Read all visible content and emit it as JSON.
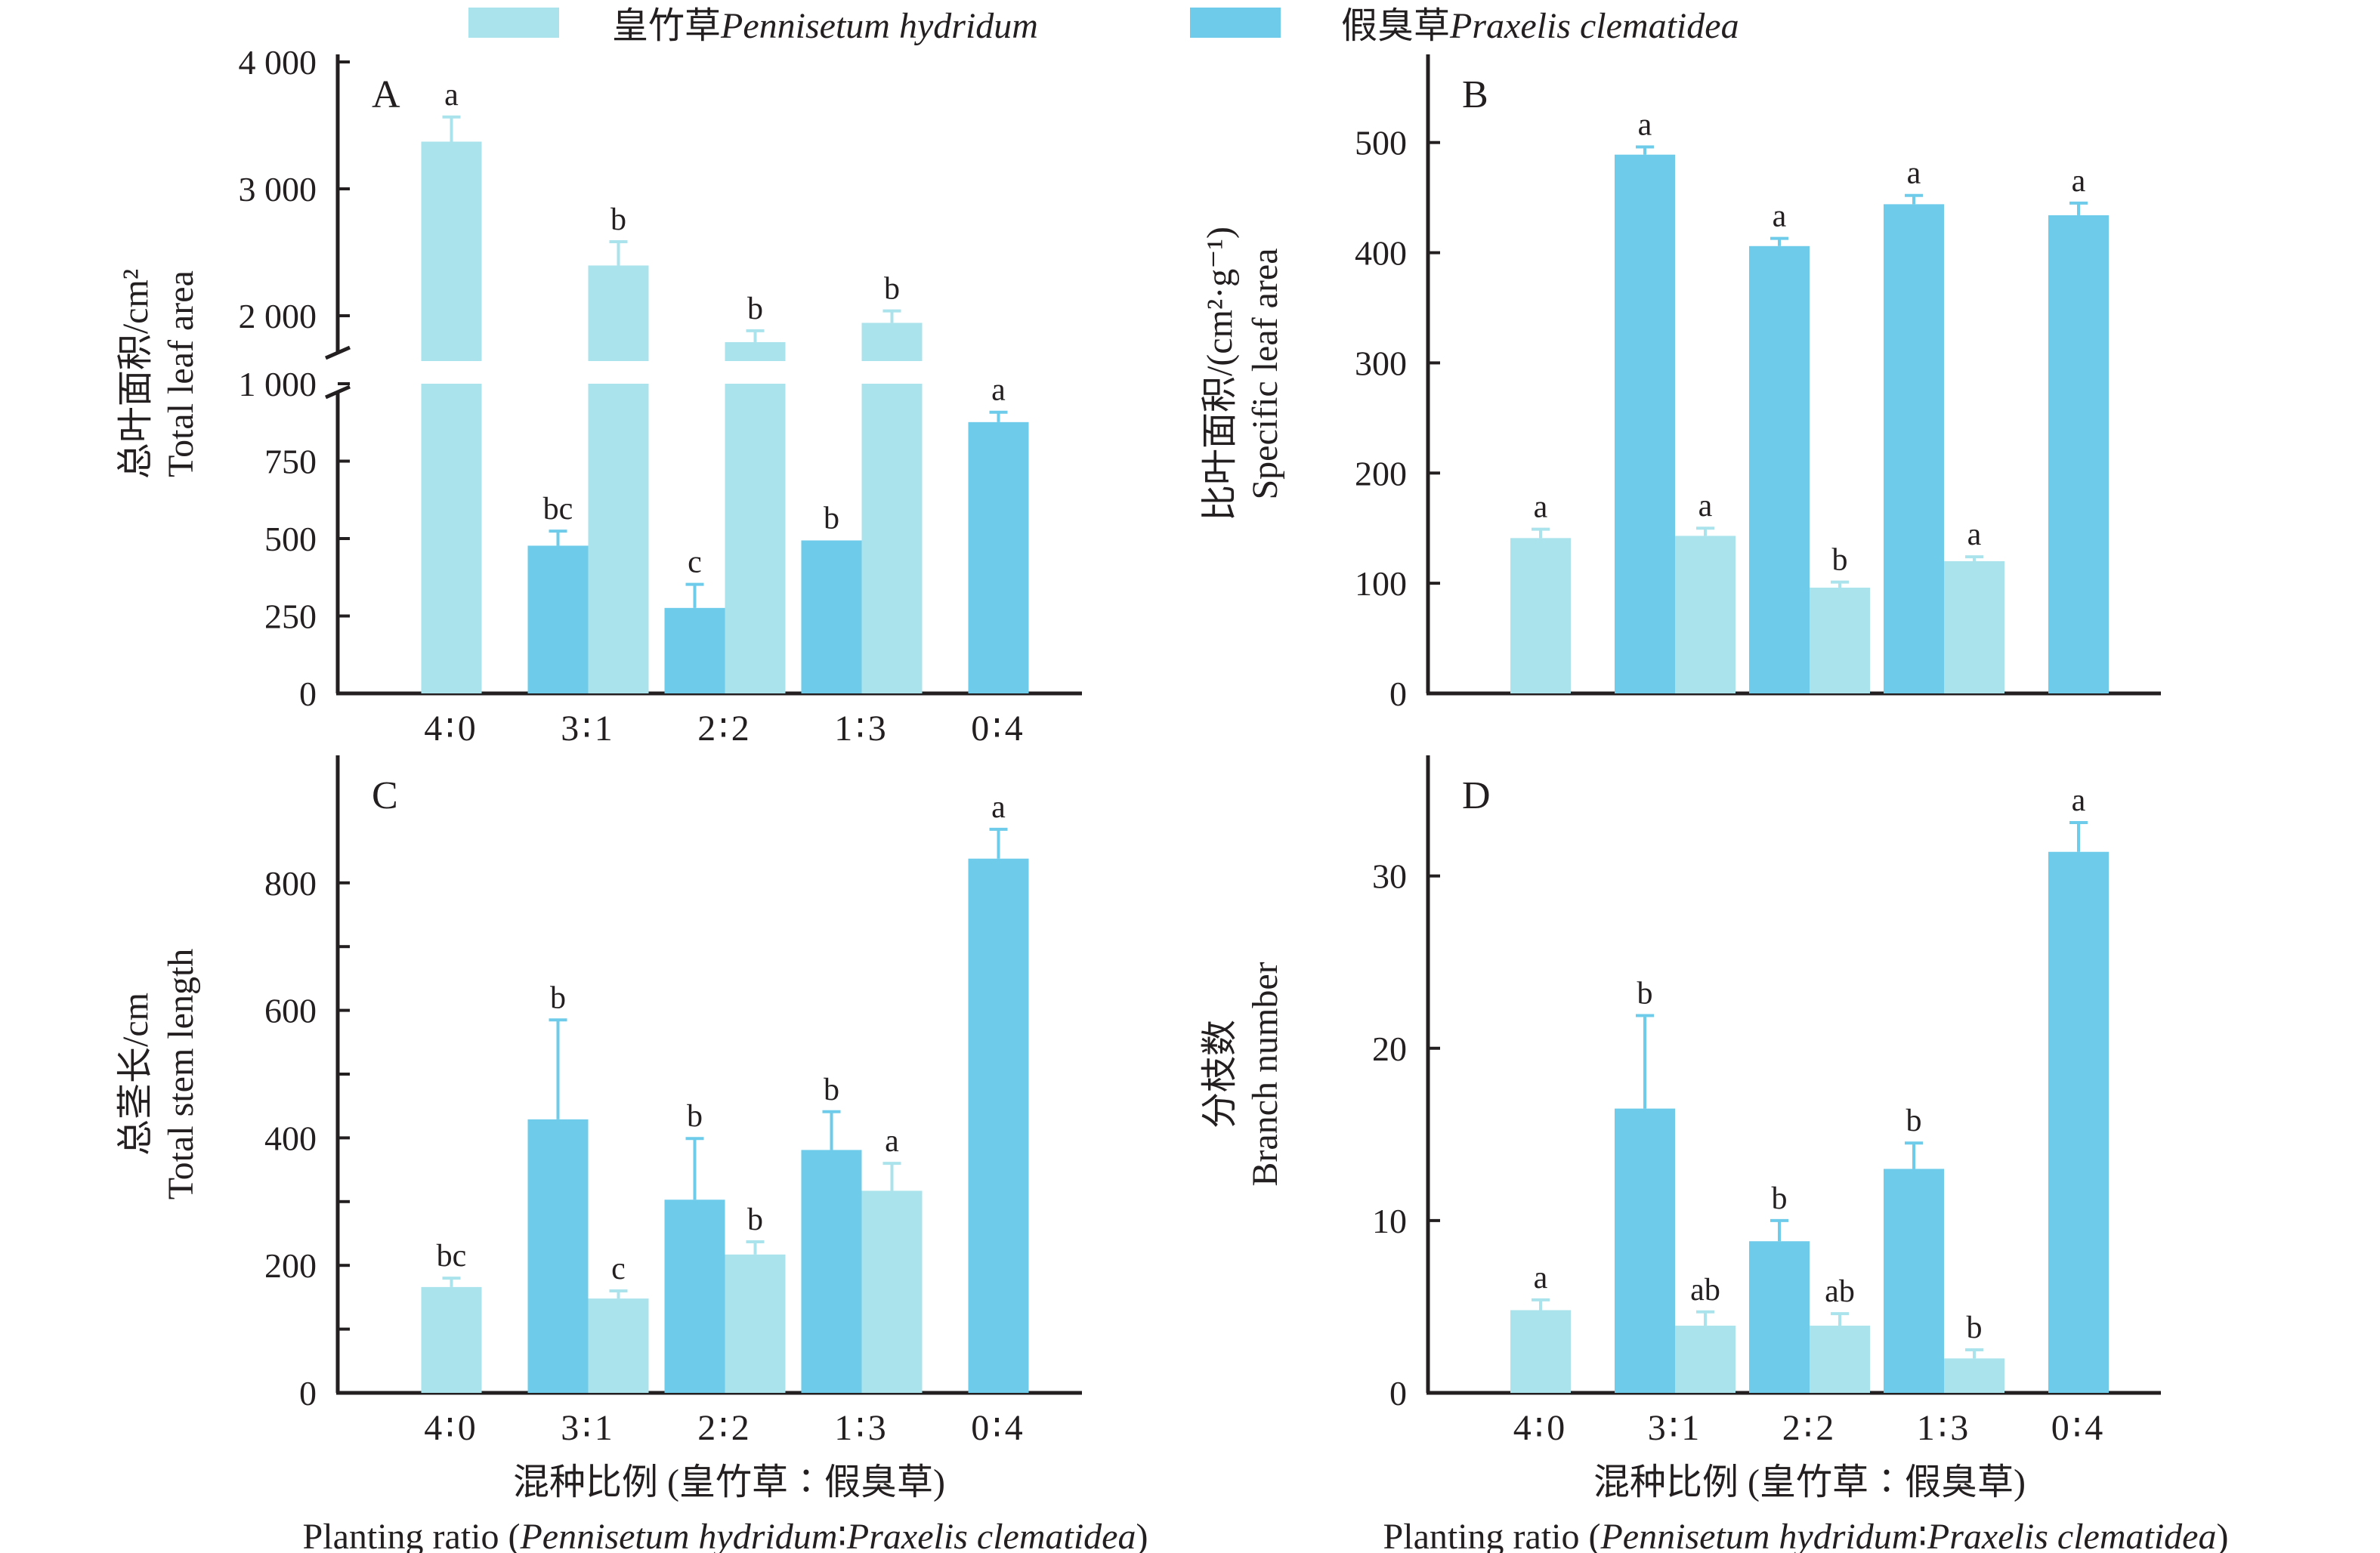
{
  "colors": {
    "pennisetum": "#ABE3EC",
    "praxelis": "#6ECBE9",
    "axis": "#231f20"
  },
  "legend": {
    "items": [
      {
        "key": "pennisetum",
        "cn": "皇竹草",
        "latin": "Pennisetum hydridum"
      },
      {
        "key": "praxelis",
        "cn": "假臭草",
        "latin": "Praxelis clematidea"
      }
    ]
  },
  "x_axis": {
    "categories": [
      "4∶0",
      "3∶1",
      "2∶2",
      "1∶3",
      "0∶4"
    ],
    "title_cn": "混种比例 (皇竹草∶假臭草)",
    "title_en_prefix": "Planting ratio (",
    "title_en_sp1": "Pennisetum hydridum",
    "title_en_sep": "∶",
    "title_en_sp2": "Praxelis clematidea",
    "title_en_suffix": ")"
  },
  "chart_data": [
    {
      "panel": "A",
      "type": "bar",
      "title": "",
      "ylabel_cn": "总叶面积/cm²",
      "ylabel_en": "Total leaf area",
      "ylim": [
        0,
        4000
      ],
      "axis_break": [
        1000,
        1500
      ],
      "yticks": [
        0,
        250,
        500,
        750,
        1000,
        2000,
        3000,
        4000
      ],
      "ytick_labels": [
        "0",
        "250",
        "500",
        "750",
        "1 000",
        "2 000",
        "3 000",
        "4 000"
      ],
      "categories": [
        "4∶0",
        "3∶1",
        "2∶2",
        "1∶3",
        "0∶4"
      ],
      "series": [
        {
          "name": "皇竹草Pennisetum hydridum",
          "key": "pennisetum",
          "values": [
            3372,
            2396,
            1792,
            1944,
            null
          ],
          "errors": [
            194,
            187,
            90,
            94,
            null
          ],
          "letters": [
            "a",
            "b",
            "b",
            "b",
            null
          ]
        },
        {
          "name": "假臭草Praxelis clematidea",
          "key": "praxelis",
          "values": [
            null,
            477,
            276,
            494,
            876
          ],
          "errors": [
            null,
            47,
            76,
            0,
            32
          ],
          "letters": [
            null,
            "bc",
            "c",
            "b",
            "a"
          ]
        }
      ]
    },
    {
      "panel": "B",
      "type": "bar",
      "ylabel_cn": "比叶面积/(cm²·g⁻¹)",
      "ylabel_en": "Specific leaf area",
      "ylim": [
        0,
        580
      ],
      "yticks": [
        0,
        100,
        200,
        300,
        400,
        500
      ],
      "ytick_labels": [
        "0",
        "100",
        "200",
        "300",
        "400",
        "500"
      ],
      "categories": [
        "4∶0",
        "3∶1",
        "2∶2",
        "1∶3",
        "0∶4"
      ],
      "series": [
        {
          "name": "皇竹草Pennisetum hydridum",
          "key": "pennisetum",
          "values": [
            141,
            143,
            96,
            120,
            null
          ],
          "errors": [
            8,
            7,
            5,
            4,
            null
          ],
          "letters": [
            "a",
            "a",
            "b",
            "a",
            null
          ]
        },
        {
          "name": "假臭草Praxelis clematidea",
          "key": "praxelis",
          "values": [
            null,
            489,
            406,
            444,
            434
          ],
          "errors": [
            null,
            7,
            7,
            8,
            11
          ],
          "letters": [
            null,
            "a",
            "a",
            "a",
            "a"
          ]
        }
      ]
    },
    {
      "panel": "C",
      "type": "bar",
      "ylabel_cn": "总茎长/cm",
      "ylabel_en": "Total stem length",
      "ylim": [
        0,
        1000
      ],
      "yticks": [
        0,
        200,
        400,
        600,
        800
      ],
      "ytick_labels": [
        "0",
        "200",
        "400",
        "600",
        "800"
      ],
      "categories": [
        "4∶0",
        "3∶1",
        "2∶2",
        "1∶3",
        "0∶4"
      ],
      "series": [
        {
          "name": "皇竹草Pennisetum hydridum",
          "key": "pennisetum",
          "values": [
            166,
            148,
            217,
            317,
            null
          ],
          "errors": [
            14,
            12,
            20,
            43,
            null
          ],
          "letters": [
            "bc",
            "c",
            "b",
            "a",
            null
          ]
        },
        {
          "name": "假臭草Praxelis clematidea",
          "key": "praxelis",
          "values": [
            null,
            429,
            303,
            381,
            838
          ],
          "errors": [
            null,
            156,
            96,
            60,
            46
          ],
          "letters": [
            null,
            "b",
            "b",
            "b",
            "a"
          ]
        }
      ]
    },
    {
      "panel": "D",
      "type": "bar",
      "ylabel_cn": "分枝数",
      "ylabel_en": "Branch number",
      "ylim": [
        0,
        37
      ],
      "yticks": [
        0,
        10,
        20,
        30
      ],
      "ytick_labels": [
        "0",
        "10",
        "20",
        "30"
      ],
      "categories": [
        "4∶0",
        "3∶1",
        "2∶2",
        "1∶3",
        "0∶4"
      ],
      "series": [
        {
          "name": "皇竹草Pennisetum hydridum",
          "key": "pennisetum",
          "values": [
            4.8,
            3.9,
            3.9,
            2.0,
            null
          ],
          "errors": [
            0.6,
            0.8,
            0.7,
            0.5,
            null
          ],
          "letters": [
            "a",
            "ab",
            "ab",
            "b",
            null
          ]
        },
        {
          "name": "假臭草Praxelis clematidea",
          "key": "praxelis",
          "values": [
            null,
            16.5,
            8.8,
            13.0,
            31.4
          ],
          "errors": [
            null,
            5.4,
            1.2,
            1.5,
            1.7
          ],
          "letters": [
            null,
            "b",
            "b",
            "b",
            "a"
          ]
        }
      ]
    }
  ]
}
